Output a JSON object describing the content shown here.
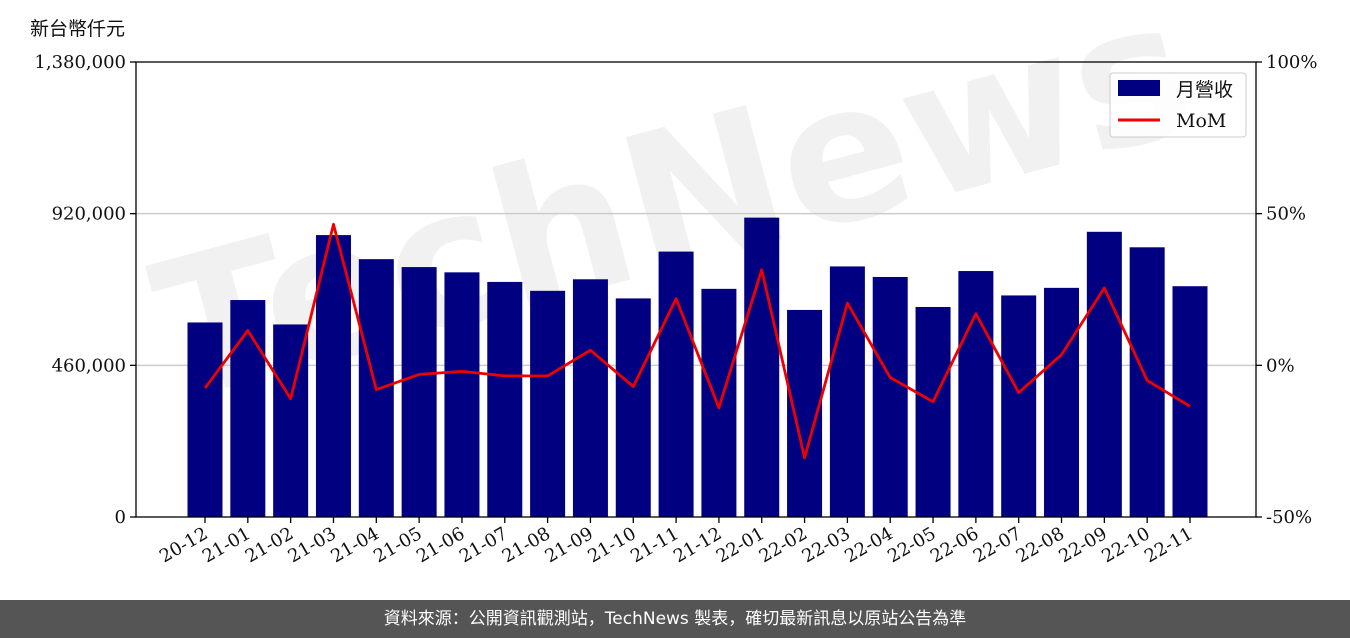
{
  "unit_label": "新台幣仟元",
  "watermark": "TechNews",
  "footer": "資料來源：公開資訊觀測站，TechNews 製表，確切最新訊息以原站公告為準",
  "colors": {
    "bar": "#000080",
    "line": "#ee0000",
    "grid": "#cccccc"
  },
  "chart_data": {
    "type": "bar",
    "categories": [
      "20-12",
      "21-01",
      "21-02",
      "21-03",
      "21-04",
      "21-05",
      "21-06",
      "21-07",
      "21-08",
      "21-09",
      "21-10",
      "21-11",
      "21-12",
      "22-01",
      "22-02",
      "22-03",
      "22-04",
      "22-05",
      "22-06",
      "22-07",
      "22-08",
      "22-09",
      "22-10",
      "22-11"
    ],
    "series": [
      {
        "name": "月營收",
        "type": "bar",
        "axis": "left",
        "values": [
          590000,
          658000,
          584000,
          855000,
          782000,
          758000,
          742000,
          713000,
          686000,
          721000,
          663000,
          805000,
          692000,
          908000,
          628000,
          760000,
          728000,
          637000,
          746000,
          672000,
          695000,
          865000,
          818000,
          700000
        ]
      },
      {
        "name": "MoM",
        "type": "line",
        "axis": "right",
        "unit": "%",
        "values": [
          -7.5,
          11.5,
          -11.0,
          46.5,
          -8.0,
          -3.0,
          -2.0,
          -3.5,
          -3.5,
          5.0,
          -7.0,
          22.0,
          -14.0,
          31.5,
          -30.5,
          20.5,
          -4.0,
          -12.0,
          17.0,
          -9.0,
          3.5,
          25.5,
          -5.0,
          -13.5
        ]
      }
    ],
    "y_left": {
      "lim": [
        0,
        1380000
      ],
      "ticks": [
        0,
        460000,
        920000,
        1380000
      ],
      "tick_labels": [
        "0",
        "460,000",
        "920,000",
        "1,380,000"
      ]
    },
    "y_right": {
      "lim": [
        -50,
        100
      ],
      "ticks": [
        -50,
        0,
        50,
        100
      ],
      "tick_labels": [
        "-50%",
        "0%",
        "50%",
        "100%"
      ]
    },
    "grid": "horizontal",
    "legend": "top-right"
  }
}
